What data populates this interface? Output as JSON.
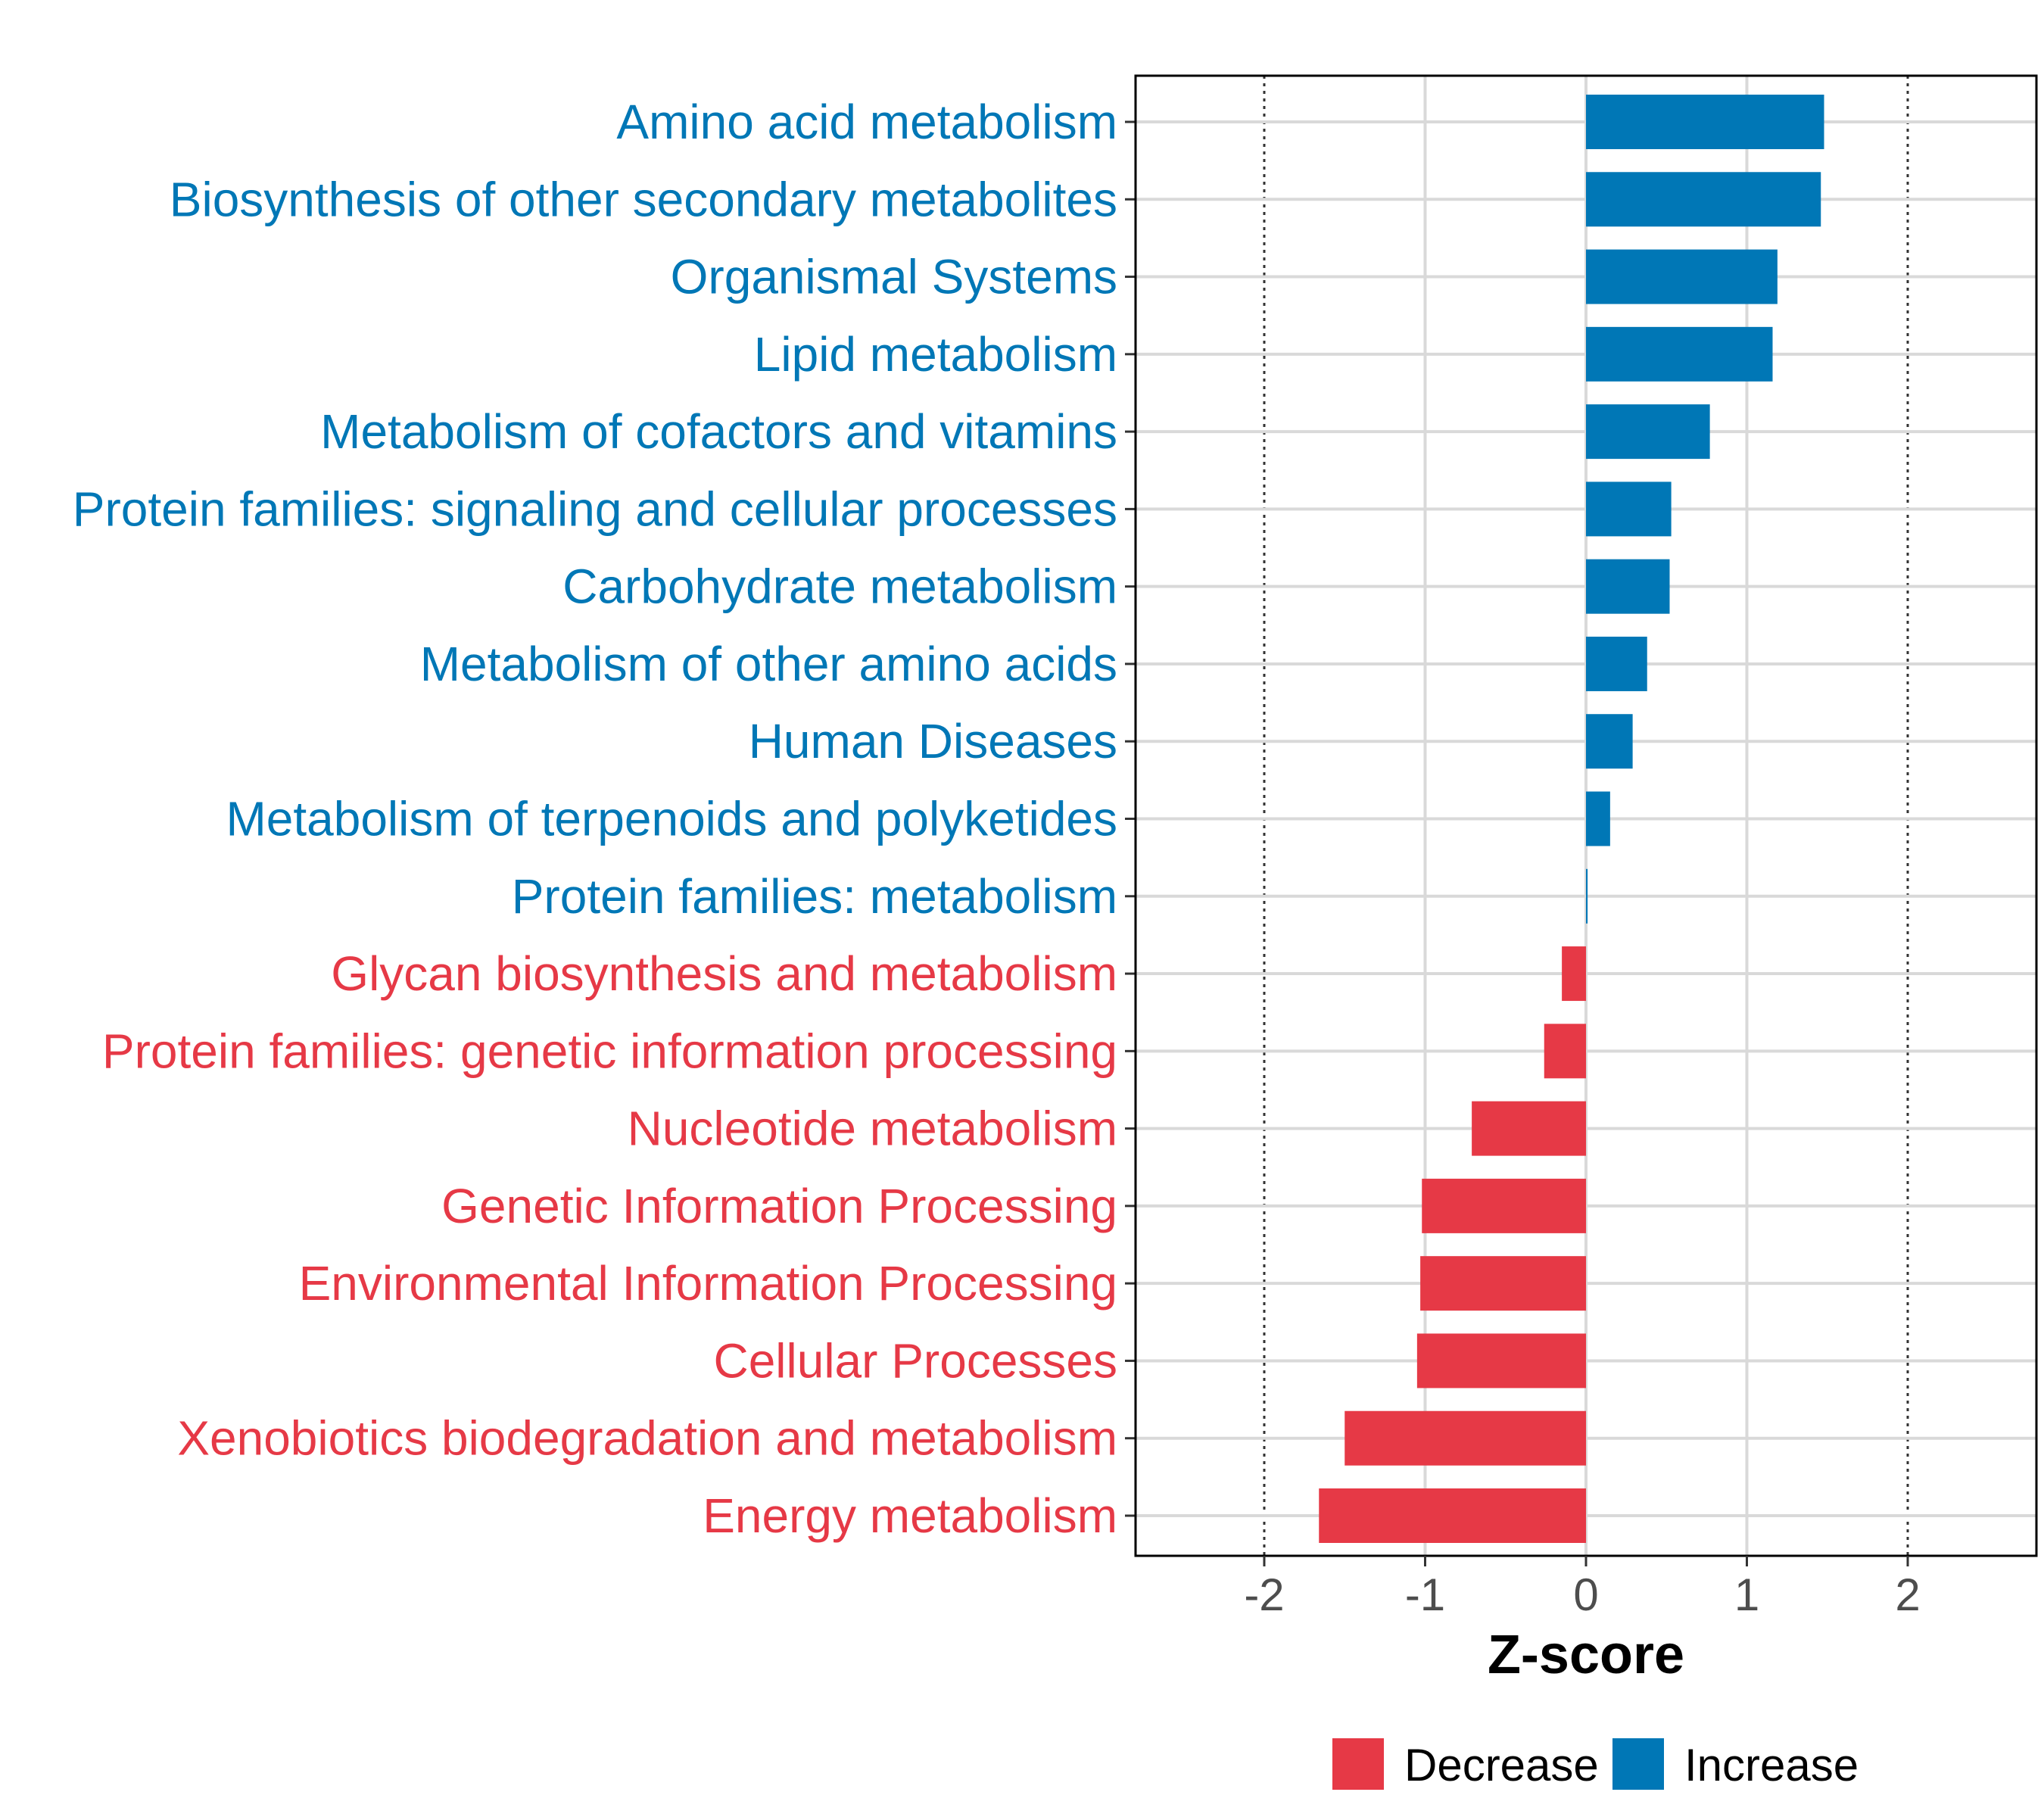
{
  "chart_data": {
    "type": "bar",
    "orientation": "horizontal",
    "xlabel": "Z-score",
    "xlim": [
      -2.8,
      2.8
    ],
    "xticks": [
      "-2",
      "-1",
      "0",
      "1",
      "2"
    ],
    "tick_values": [
      -2,
      -1,
      0,
      1,
      2
    ],
    "reference_lines": [
      -2,
      2
    ],
    "grid": true,
    "categories": [
      "Amino acid metabolism",
      "Biosynthesis of other secondary metabolites",
      "Organismal Systems",
      "Lipid metabolism",
      "Metabolism of cofactors and vitamins",
      "Protein families: signaling and cellular processes",
      "Carbohydrate metabolism",
      "Metabolism of other amino acids",
      "Human Diseases",
      "Metabolism of terpenoids and polyketides",
      "Protein families: metabolism",
      "Glycan biosynthesis and metabolism",
      "Protein families: genetic information processing",
      "Nucleotide metabolism",
      "Genetic Information Processing",
      "Environmental Information Processing",
      "Cellular Processes",
      "Xenobiotics biodegradation and metabolism",
      "Energy metabolism"
    ],
    "values": [
      1.48,
      1.46,
      1.19,
      1.16,
      0.77,
      0.53,
      0.52,
      0.38,
      0.29,
      0.15,
      0.01,
      -0.15,
      -0.26,
      -0.71,
      -1.02,
      -1.03,
      -1.05,
      -1.5,
      -1.66
    ],
    "groups": [
      "Increase",
      "Increase",
      "Increase",
      "Increase",
      "Increase",
      "Increase",
      "Increase",
      "Increase",
      "Increase",
      "Increase",
      "Increase",
      "Decrease",
      "Decrease",
      "Decrease",
      "Decrease",
      "Decrease",
      "Decrease",
      "Decrease",
      "Decrease"
    ],
    "legend": [
      {
        "label": "Decrease",
        "color": "#e63946"
      },
      {
        "label": "Increase",
        "color": "#0077b6"
      }
    ],
    "legend_position": "bottom"
  }
}
